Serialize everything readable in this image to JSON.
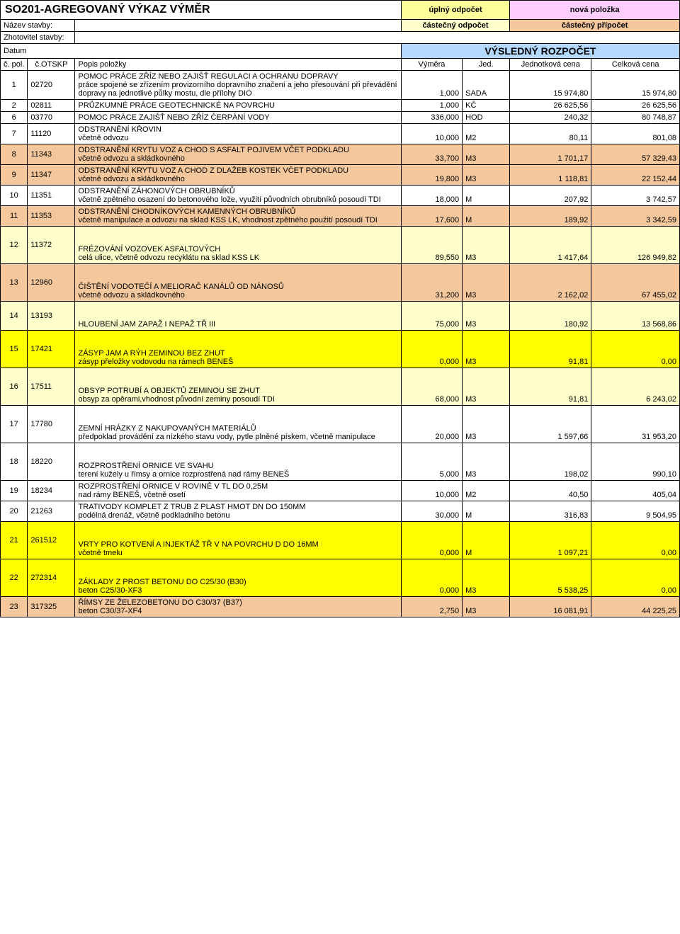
{
  "header": {
    "title": "SO201-AGREGOVANÝ VÝKAZ VÝMĚR",
    "yellow_tag": "úplný odpočet",
    "pink_tag": "nová položka",
    "nazev_stavby_label": "Název stavby:",
    "cream_tag": "částečný odpočet",
    "orange_tag": "částečný přípočet",
    "zhotovitel_label": "Zhotovitel stavby:",
    "datum_label": "Datum",
    "vysledny": "VÝSLEDNÝ ROZPOČET"
  },
  "cols": {
    "c_pol": "č. pol.",
    "c_otskp": "č.OTSKP",
    "popis": "Popis položky",
    "vymera": "Výměra",
    "jed": "Jed.",
    "jedn_cena": "Jednotková cena",
    "celk_cena": "Celková cena"
  },
  "rows": [
    {
      "n": "1",
      "otskp": "02720",
      "popis": "POMOC PRÁCE ZŘÍZ NEBO ZAJIŠŤ REGULACI A OCHRANU DOPRAVY\npráce spojené se zřízením  provizorního dopravního značení a jeho přesouvání při převádění dopravy na jednotlivé půlky mostu, dle přílohy DIO",
      "vym": "1,000",
      "jed": "SADA",
      "jc": "15 974,80",
      "cc": "15 974,80",
      "bg": ""
    },
    {
      "n": "2",
      "otskp": "02811",
      "popis": "PRŮZKUMNÉ PRÁCE GEOTECHNICKÉ NA POVRCHU",
      "vym": "1,000",
      "jed": "KČ",
      "jc": "26 625,56",
      "cc": "26 625,56",
      "bg": ""
    },
    {
      "n": "6",
      "otskp": "03770",
      "popis": "POMOC PRÁCE ZAJIŠŤ NEBO ZŘÍZ ČERPÁNÍ VODY",
      "vym": "336,000",
      "jed": "HOD",
      "jc": "240,32",
      "cc": "80 748,87",
      "bg": ""
    },
    {
      "n": "7",
      "otskp": "11120",
      "popis": "ODSTRANĚNÍ KŘOVIN\nvčetně odvozu",
      "vym": "10,000",
      "jed": "M2",
      "jc": "80,11",
      "cc": "801,08",
      "bg": ""
    },
    {
      "n": "8",
      "otskp": "11343",
      "popis": "ODSTRANĚNÍ KRYTU VOZ A CHOD S ASFALT POJIVEM VČET PODKLADU\nvčetně odvozu a skládkovného",
      "vym": "33,700",
      "jed": "M3",
      "jc": "1 701,17",
      "cc": "57 329,43",
      "bg": "orange"
    },
    {
      "n": "9",
      "otskp": "11347",
      "popis": "ODSTRANĚNÍ KRYTU VOZ A CHOD Z DLAŽEB KOSTEK VČET PODKLADU\nvčetně odvozu a skládkovného",
      "vym": "19,800",
      "jed": "M3",
      "jc": "1 118,81",
      "cc": "22 152,44",
      "bg": "orange"
    },
    {
      "n": "10",
      "otskp": "11351",
      "popis": "ODSTRANĚNÍ ZÁHONOVÝCH OBRUBNÍKŮ\nvčetně zpětného osazení do betonového lože, využití původních obrubníků posoudí TDI",
      "vym": "18,000",
      "jed": "M",
      "jc": "207,92",
      "cc": "3 742,57",
      "bg": ""
    },
    {
      "n": "11",
      "otskp": "11353",
      "popis": "ODSTRANĚNÍ CHODNÍKOVÝCH KAMENNÝCH OBRUBNÍKŮ\nvčetně manipulace a odvozu na sklad KSS LK, vhodnost zpětného použití posoudí TDI",
      "vym": "17,600",
      "jed": "M",
      "jc": "189,92",
      "cc": "3 342,59",
      "bg": "orange"
    },
    {
      "n": "12",
      "otskp": "11372",
      "popis": "FRÉZOVÁNÍ VOZOVEK ASFALTOVÝCH\ncelá ulice, včetně odvozu recyklátu na sklad KSS LK",
      "vym": "89,550",
      "jed": "M3",
      "jc": "1 417,64",
      "cc": "126 949,82",
      "bg": "cream",
      "tall": true
    },
    {
      "n": "13",
      "otskp": "12960",
      "popis": "ČIŠTĚNÍ VODOTEČÍ A MELIORAČ KANÁLŮ OD NÁNOSŮ\nvčetně odvozu a skládkovného",
      "vym": "31,200",
      "jed": "M3",
      "jc": "2 162,02",
      "cc": "67 455,02",
      "bg": "orange",
      "tall": true
    },
    {
      "n": "14",
      "otskp": "13193",
      "popis": "HLOUBENÍ JAM ZAPAŽ I NEPAŽ TŘ III",
      "vym": "75,000",
      "jed": "M3",
      "jc": "180,92",
      "cc": "13 568,86",
      "bg": "cream",
      "tall": true
    },
    {
      "n": "15",
      "otskp": "17421",
      "popis": "ZÁSYP JAM A RÝH ZEMINOU BEZ ZHUT\nzásyp přeložky vodovodu na rámech BENEŠ",
      "vym": "0,000",
      "jed": "M3",
      "jc": "91,81",
      "cc": "0,00",
      "bg": "bright-yellow",
      "tall": true
    },
    {
      "n": "16",
      "otskp": "17511",
      "popis": "OBSYP POTRUBÍ A OBJEKTŮ ZEMINOU SE ZHUT\nobsyp za opěrami,vhodnost původní zeminy posoudí TDI",
      "vym": "68,000",
      "jed": "M3",
      "jc": "91,81",
      "cc": "6 243,02",
      "bg": "cream",
      "tall": true
    },
    {
      "n": "17",
      "otskp": "17780",
      "popis": "ZEMNÍ HRÁZKY Z NAKUPOVANÝCH MATERIÁLŮ\npředpoklad provádění za nízkého stavu vody, pytle plněné pískem, včetně manipulace",
      "vym": "20,000",
      "jed": "M3",
      "jc": "1 597,66",
      "cc": "31 953,20",
      "bg": "",
      "tall": true
    },
    {
      "n": "18",
      "otskp": "18220",
      "popis": "ROZPROSTŘENÍ ORNICE VE SVAHU\nterení kužely u římsy a ornice rozprostřená nad rámy BENEŠ",
      "vym": "5,000",
      "jed": "M3",
      "jc": "198,02",
      "cc": "990,10",
      "bg": "",
      "tall": true
    },
    {
      "n": "19",
      "otskp": "18234",
      "popis": "ROZPROSTŘENÍ ORNICE V ROVINĚ V TL DO 0,25M\nnad rámy BENEŠ, včetně osetí",
      "vym": "10,000",
      "jed": "M2",
      "jc": "40,50",
      "cc": "405,04",
      "bg": ""
    },
    {
      "n": "20",
      "otskp": "21263",
      "popis": "TRATIVODY KOMPLET Z TRUB Z PLAST HMOT DN DO 150MM\npodélná drenáž, včetně podkladního betonu",
      "vym": "30,000",
      "jed": "M",
      "jc": "316,83",
      "cc": "9 504,95",
      "bg": ""
    },
    {
      "n": "21",
      "otskp": "261512",
      "popis": "VRTY PRO KOTVENÍ A INJEKTÁŽ TŘ V NA POVRCHU D DO 16MM\nvčetně tmelu",
      "vym": "0,000",
      "jed": "M",
      "jc": "1 097,21",
      "cc": "0,00",
      "bg": "bright-yellow",
      "tall": true
    },
    {
      "n": "22",
      "otskp": "272314",
      "popis": "ZÁKLADY Z PROST BETONU DO C25/30 (B30)\nbeton C25/30-XF3",
      "vym": "0,000",
      "jed": "M3",
      "jc": "5 538,25",
      "cc": "0,00",
      "bg": "bright-yellow",
      "tall": true
    },
    {
      "n": "23",
      "otskp": "317325",
      "popis": "ŘÍMSY ZE ŽELEZOBETONU DO C30/37 (B37)\nbeton C30/37-XF4",
      "vym": "2,750",
      "jed": "M3",
      "jc": "16 081,91",
      "cc": "44 225,25",
      "bg": "orange"
    }
  ]
}
